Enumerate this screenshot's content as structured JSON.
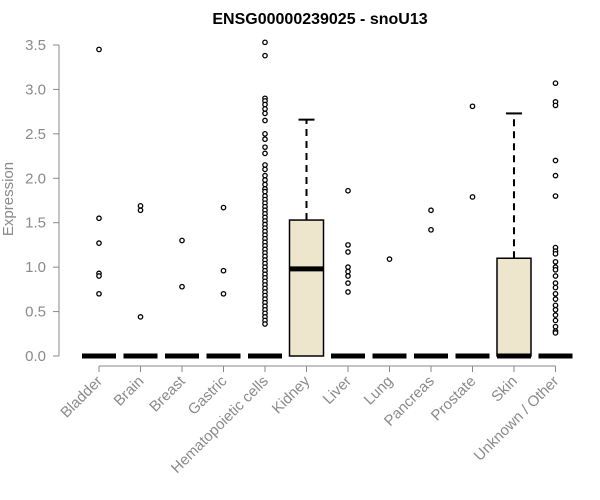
{
  "chart_data": {
    "type": "boxplot",
    "title": "ENSG00000239025 - snoU13",
    "ylabel": "Expression",
    "xlabel": "",
    "ylim": [
      0,
      3.5
    ],
    "yticks": [
      "0.0",
      "0.5",
      "1.0",
      "1.5",
      "2.0",
      "2.5",
      "3.0",
      "3.5"
    ],
    "box_fill": "#ede6cd",
    "categories": [
      "Bladder",
      "Brain",
      "Breast",
      "Gastric",
      "Hematopoietic cells",
      "Kidney",
      "Liver",
      "Lung",
      "Pancreas",
      "Prostate",
      "Skin",
      "Unknown / Other"
    ],
    "boxes": [
      {
        "q1": 0,
        "median": 0,
        "q3": 0,
        "whisker_high": 0,
        "outliers": [
          3.45,
          1.55,
          1.27,
          0.93,
          0.9,
          0.7
        ]
      },
      {
        "q1": 0,
        "median": 0,
        "q3": 0,
        "whisker_high": 0,
        "outliers": [
          1.69,
          1.64,
          0.44
        ]
      },
      {
        "q1": 0,
        "median": 0,
        "q3": 0,
        "whisker_high": 0,
        "outliers": [
          1.3,
          0.78
        ]
      },
      {
        "q1": 0,
        "median": 0,
        "q3": 0,
        "whisker_high": 0,
        "outliers": [
          1.67,
          0.96,
          0.7
        ]
      },
      {
        "q1": 0,
        "median": 0,
        "q3": 0,
        "whisker_high": 0,
        "outliers": [
          3.53,
          3.38,
          2.9,
          2.87,
          2.83,
          2.78,
          2.73,
          2.65,
          2.5,
          2.44,
          2.35,
          2.28,
          2.15,
          2.1,
          2.03,
          1.98,
          1.93,
          1.88,
          1.85,
          1.8,
          1.76,
          1.72,
          1.68,
          1.64,
          1.6,
          1.56,
          1.52,
          1.48,
          1.44,
          1.4,
          1.36,
          1.32,
          1.28,
          1.24,
          1.2,
          1.16,
          1.12,
          1.08,
          1.04,
          1.0,
          0.96,
          0.92,
          0.88,
          0.84,
          0.8,
          0.76,
          0.72,
          0.68,
          0.64,
          0.6,
          0.56,
          0.52,
          0.48,
          0.44,
          0.4,
          0.36
        ]
      },
      {
        "q1": 0,
        "median": 0.98,
        "q3": 1.53,
        "whisker_high": 2.66,
        "outliers": []
      },
      {
        "q1": 0,
        "median": 0,
        "q3": 0,
        "whisker_high": 0,
        "outliers": [
          1.86,
          1.25,
          1.17,
          1.0,
          0.95,
          0.9,
          0.82,
          0.72
        ]
      },
      {
        "q1": 0,
        "median": 0,
        "q3": 0,
        "whisker_high": 0,
        "outliers": [
          1.09
        ]
      },
      {
        "q1": 0,
        "median": 0,
        "q3": 0,
        "whisker_high": 0,
        "outliers": [
          1.64,
          1.42
        ]
      },
      {
        "q1": 0,
        "median": 0,
        "q3": 0,
        "whisker_high": 0,
        "outliers": [
          2.81,
          1.79
        ]
      },
      {
        "q1": 0,
        "median": 0,
        "q3": 1.1,
        "whisker_high": 2.73,
        "outliers": []
      },
      {
        "q1": 0,
        "median": 0,
        "q3": 0,
        "whisker_high": 0,
        "outliers": [
          3.07,
          2.86,
          2.82,
          2.2,
          2.03,
          1.8,
          1.22,
          1.18,
          1.15,
          1.06,
          1.0,
          0.97,
          0.9,
          0.82,
          0.77,
          0.7,
          0.64,
          0.57,
          0.52,
          0.46,
          0.4,
          0.33,
          0.28,
          0.26
        ]
      }
    ]
  }
}
